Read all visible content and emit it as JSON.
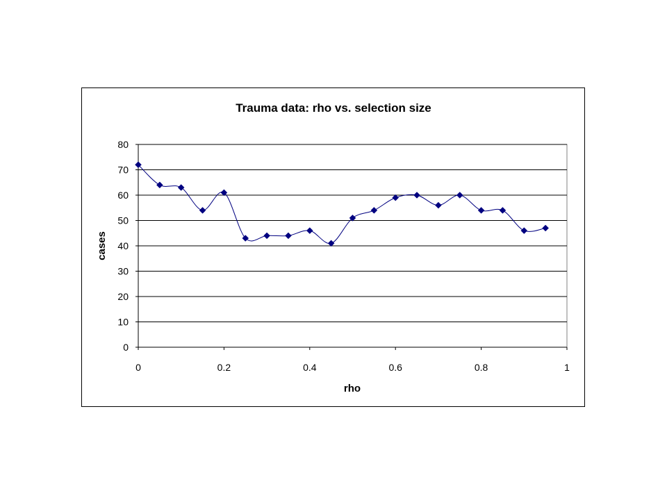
{
  "chart_data": {
    "type": "scatter",
    "title": "Trauma data: rho vs. selection size",
    "xlabel": "rho",
    "ylabel": "cases",
    "xlim": [
      0,
      1
    ],
    "ylim": [
      0,
      80
    ],
    "x_ticks": [
      "0",
      "0.2",
      "0.4",
      "0.6",
      "0.8",
      "1"
    ],
    "y_ticks": [
      "0",
      "10",
      "20",
      "30",
      "40",
      "50",
      "60",
      "70",
      "80"
    ],
    "grid": "horizontal",
    "legend": "none",
    "line_style": "smoothed",
    "marker": "diamond",
    "series": [
      {
        "color": "#000080",
        "points": [
          {
            "x": 0.0,
            "y": 72
          },
          {
            "x": 0.05,
            "y": 64
          },
          {
            "x": 0.1,
            "y": 63
          },
          {
            "x": 0.15,
            "y": 54
          },
          {
            "x": 0.2,
            "y": 61
          },
          {
            "x": 0.25,
            "y": 43
          },
          {
            "x": 0.3,
            "y": 44
          },
          {
            "x": 0.35,
            "y": 44
          },
          {
            "x": 0.4,
            "y": 46
          },
          {
            "x": 0.45,
            "y": 41
          },
          {
            "x": 0.5,
            "y": 51
          },
          {
            "x": 0.55,
            "y": 54
          },
          {
            "x": 0.6,
            "y": 59
          },
          {
            "x": 0.65,
            "y": 60
          },
          {
            "x": 0.7,
            "y": 56
          },
          {
            "x": 0.75,
            "y": 60
          },
          {
            "x": 0.8,
            "y": 54
          },
          {
            "x": 0.85,
            "y": 54
          },
          {
            "x": 0.9,
            "y": 46
          },
          {
            "x": 0.95,
            "y": 47
          }
        ]
      }
    ]
  }
}
